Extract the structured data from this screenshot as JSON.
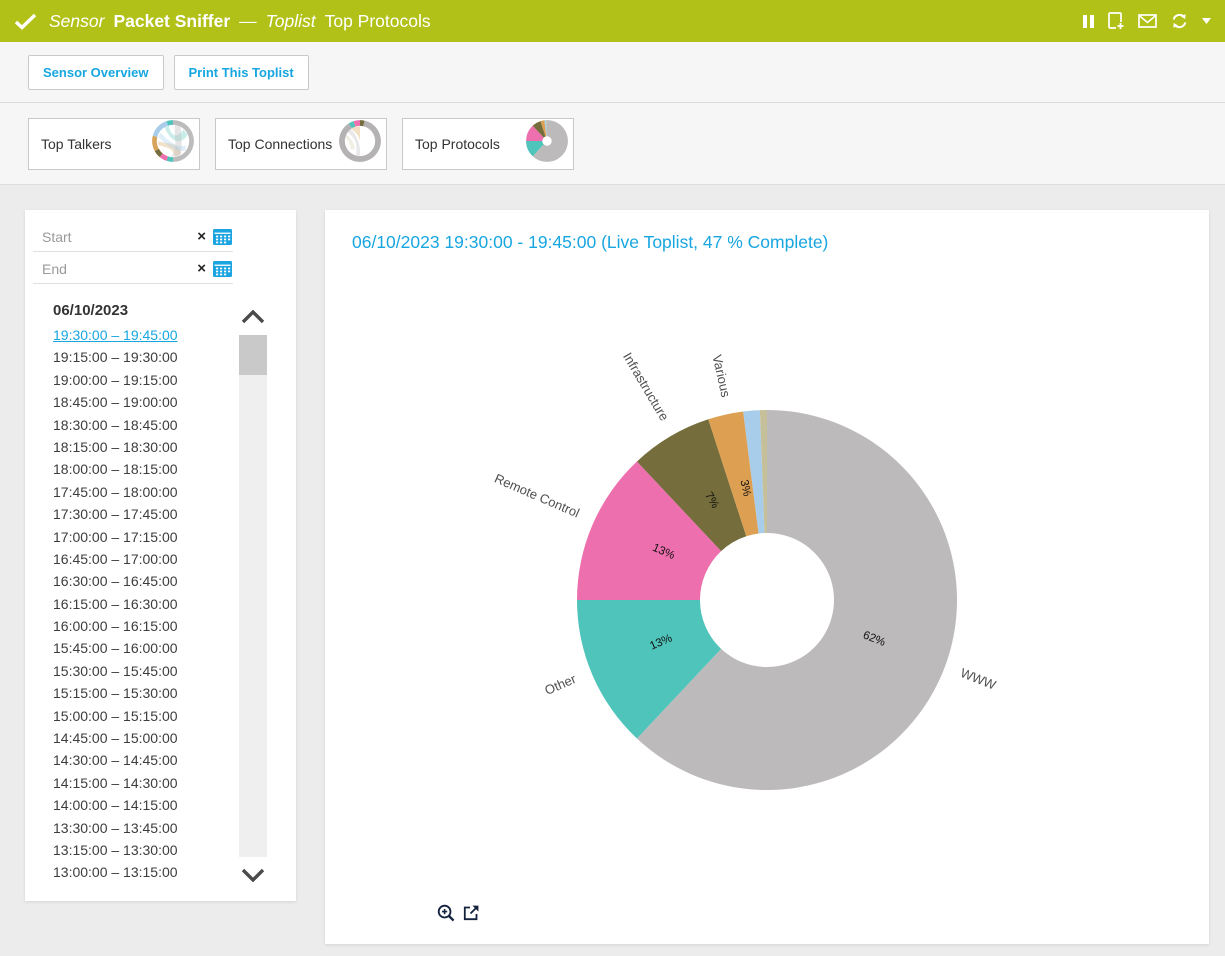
{
  "colors": {
    "header_bg": "#b2c117",
    "accent_blue": "#17a6e0",
    "page_bg": "#ececec",
    "toolbar_bg": "#f6f6f6",
    "divider": "#dcdcdc",
    "panel_bg": "#ffffff",
    "text_dark": "#333333",
    "text_muted": "#9a9a9a",
    "scrollbar_thumb": "#c9c9c9",
    "scrollbar_track": "#efefef",
    "footer_icon": "#15233f",
    "calendar_icon": "#1ba4e0"
  },
  "header": {
    "status_icon": "check-icon",
    "object_type": "Sensor",
    "sensor_name": "Packet Sniffer",
    "dash": "—",
    "list_type": "Toplist",
    "list_name": "Top Protocols",
    "action_icons": [
      "pause-icon",
      "report-icon",
      "email-icon",
      "refresh-icon",
      "dropdown-caret-icon"
    ]
  },
  "toolbar": {
    "overview_label": "Sensor Overview",
    "print_label": "Print This Toplist"
  },
  "tabs": {
    "active_index": 2,
    "items": [
      {
        "label": "Top Talkers",
        "icon": "chord-diagram-icon"
      },
      {
        "label": "Top Connections",
        "icon": "chord-diagram-icon"
      },
      {
        "label": "Top Protocols",
        "icon": "pie-chart-icon"
      }
    ]
  },
  "sidebar": {
    "start_placeholder": "Start",
    "end_placeholder": "End",
    "clear_symbol": "×",
    "date_heading": "06/10/2023",
    "selected_index": 0,
    "intervals": [
      "19:30:00 – 19:45:00",
      "19:15:00 – 19:30:00",
      "19:00:00 – 19:15:00",
      "18:45:00 – 19:00:00",
      "18:30:00 – 18:45:00",
      "18:15:00 – 18:30:00",
      "18:00:00 – 18:15:00",
      "17:45:00 – 18:00:00",
      "17:30:00 – 17:45:00",
      "17:00:00 – 17:15:00",
      "16:45:00 – 17:00:00",
      "16:30:00 – 16:45:00",
      "16:15:00 – 16:30:00",
      "16:00:00 – 16:15:00",
      "15:45:00 – 16:00:00",
      "15:30:00 – 15:45:00",
      "15:15:00 – 15:30:00",
      "15:00:00 – 15:15:00",
      "14:45:00 – 15:00:00",
      "14:30:00 – 14:45:00",
      "14:15:00 – 14:30:00",
      "14:00:00 – 14:15:00",
      "13:30:00 – 13:45:00",
      "13:15:00 – 13:30:00",
      "13:00:00 – 13:15:00"
    ]
  },
  "main": {
    "toplist_title": "06/10/2023 19:30:00 - 19:45:00 (Live Toplist, 47 % Complete)"
  },
  "chart_data": {
    "type": "pie",
    "subtype": "donut",
    "title": "06/10/2023 19:30:00 - 19:45:00 (Live Toplist, 47 % Complete)",
    "start_angle_deg": 0,
    "direction": "clockwise",
    "inner_radius_ratio": 0.35,
    "slices": [
      {
        "label": "WWW",
        "value": 62,
        "pct_label": "62%",
        "color": "#bcbaba"
      },
      {
        "label": "Other",
        "value": 13,
        "pct_label": "13%",
        "color": "#4fc4bb"
      },
      {
        "label": "Remote Control",
        "value": 13,
        "pct_label": "13%",
        "color": "#ee6fae"
      },
      {
        "label": "Infrastructure",
        "value": 7,
        "pct_label": "7%",
        "color": "#756d3c"
      },
      {
        "label": "Various",
        "value": 3,
        "pct_label": "3%",
        "color": "#dda052"
      },
      {
        "label": "",
        "value": 1.4,
        "pct_label": "",
        "color": "#a7cdeb"
      },
      {
        "label": "",
        "value": 0.6,
        "pct_label": "",
        "color": "#c6c09a"
      }
    ]
  },
  "chart_footer_icons": [
    "zoom-in-icon",
    "open-external-icon"
  ]
}
